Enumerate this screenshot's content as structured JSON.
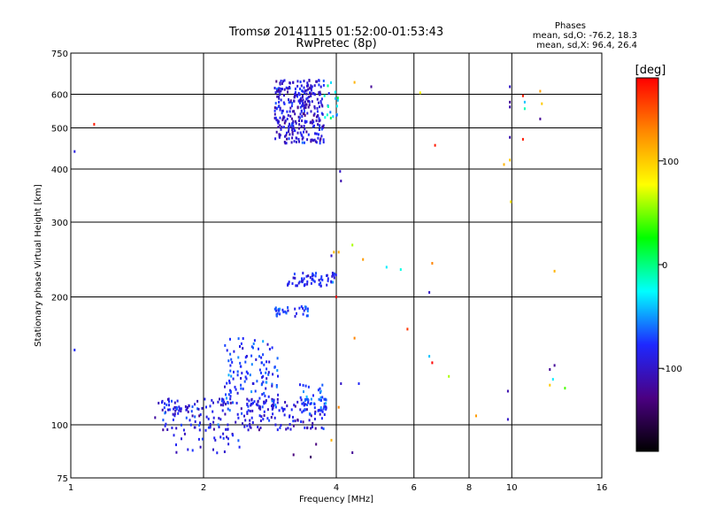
{
  "header": {
    "title_line1": "Tromsø 20141115 01:52:00-01:53:43",
    "title_line2": "RwPretec (8p)"
  },
  "stats": {
    "heading": "Phases",
    "line_o": "mean, sd,O: -76.2, 18.3",
    "line_x": "mean, sd,X:  96.4, 26.4"
  },
  "chart_data": {
    "type": "scatter",
    "xlabel": "Frequency [MHz]",
    "ylabel": "Stationary phase Virtual Height [km]",
    "x_scale": "log",
    "y_scale": "log",
    "xlim": [
      1,
      16
    ],
    "ylim": [
      75,
      750
    ],
    "x_ticks": [
      1,
      2,
      4,
      6,
      8,
      10,
      16
    ],
    "y_ticks": [
      75,
      100,
      200,
      300,
      400,
      500,
      600,
      750
    ],
    "grid": true,
    "colorbar": {
      "label": "[deg]",
      "range": [
        -180,
        180
      ],
      "ticks": [
        100,
        0,
        -100
      ],
      "colors": [
        "#000000",
        "#4b0082",
        "#1e28ff",
        "#00ffff",
        "#00ff00",
        "#ffff00",
        "#ff8800",
        "#ff0000"
      ]
    },
    "clusters": [
      {
        "trace": "F2 trace",
        "fmin": 2.9,
        "fmax": 3.75,
        "hmin": 460,
        "hmax": 650,
        "phase_mean": -95,
        "phase_sd": 25,
        "count": 320
      },
      {
        "trace": "F2 trace extension",
        "fmin": 3.75,
        "fmax": 4.1,
        "hmin": 520,
        "hmax": 640,
        "phase_mean": -40,
        "phase_sd": 40,
        "count": 18
      },
      {
        "trace": "F1 trace",
        "fmin": 3.1,
        "fmax": 4.0,
        "hmin": 212,
        "hmax": 228,
        "phase_mean": -80,
        "phase_sd": 20,
        "count": 60
      },
      {
        "trace": "F1 low trace",
        "fmin": 2.9,
        "fmax": 3.45,
        "hmin": 180,
        "hmax": 190,
        "phase_mean": -70,
        "phase_sd": 20,
        "count": 35
      },
      {
        "trace": "E layer",
        "fmin": 1.55,
        "fmax": 3.8,
        "hmin": 97,
        "hmax": 115,
        "phase_mean": -90,
        "phase_sd": 25,
        "count": 240
      },
      {
        "trace": "Es rising",
        "fmin": 2.2,
        "fmax": 2.95,
        "hmin": 110,
        "hmax": 160,
        "phase_mean": -75,
        "phase_sd": 25,
        "count": 130
      },
      {
        "trace": "E lower",
        "fmin": 1.7,
        "fmax": 2.5,
        "hmin": 85,
        "hmax": 96,
        "phase_mean": -90,
        "phase_sd": 25,
        "count": 25
      },
      {
        "trace": "E upper",
        "fmin": 3.3,
        "fmax": 3.8,
        "hmin": 105,
        "hmax": 125,
        "phase_mean": -70,
        "phase_sd": 20,
        "count": 45
      }
    ],
    "points": [
      [
        1.02,
        440,
        -90
      ],
      [
        1.13,
        510,
        170
      ],
      [
        1.02,
        150,
        -80
      ],
      [
        4.08,
        395,
        -100
      ],
      [
        4.1,
        375,
        -110
      ],
      [
        3.95,
        255,
        110
      ],
      [
        4.05,
        255,
        115
      ],
      [
        3.9,
        250,
        -100
      ],
      [
        4.35,
        265,
        60
      ],
      [
        4.6,
        245,
        120
      ],
      [
        5.2,
        235,
        -30
      ],
      [
        5.6,
        232,
        -20
      ],
      [
        6.6,
        240,
        130
      ],
      [
        6.5,
        205,
        -100
      ],
      [
        4.0,
        200,
        180
      ],
      [
        4.4,
        160,
        130
      ],
      [
        5.8,
        168,
        160
      ],
      [
        6.5,
        145,
        -40
      ],
      [
        6.6,
        140,
        190
      ],
      [
        7.2,
        130,
        60
      ],
      [
        4.5,
        125,
        -80
      ],
      [
        4.05,
        110,
        130
      ],
      [
        4.1,
        125,
        -100
      ],
      [
        3.6,
        90,
        -130
      ],
      [
        3.2,
        85,
        -130
      ],
      [
        3.5,
        84,
        -140
      ],
      [
        4.35,
        86,
        -120
      ],
      [
        3.9,
        92,
        110
      ],
      [
        8.3,
        105,
        120
      ],
      [
        9.8,
        103,
        -100
      ],
      [
        9.8,
        120,
        -110
      ],
      [
        12.2,
        135,
        -120
      ],
      [
        12.5,
        138,
        -120
      ],
      [
        12.4,
        128,
        -30
      ],
      [
        12.2,
        124,
        100
      ],
      [
        13.2,
        122,
        40
      ],
      [
        4.4,
        640,
        110
      ],
      [
        4.8,
        625,
        -120
      ],
      [
        6.2,
        605,
        80
      ],
      [
        9.9,
        625,
        -100
      ],
      [
        9.9,
        575,
        -120
      ],
      [
        9.9,
        560,
        -110
      ],
      [
        9.9,
        475,
        -110
      ],
      [
        10.6,
        595,
        170
      ],
      [
        10.7,
        575,
        -40
      ],
      [
        10.7,
        555,
        -10
      ],
      [
        11.6,
        610,
        120
      ],
      [
        11.7,
        570,
        100
      ],
      [
        11.6,
        525,
        -120
      ],
      [
        10.6,
        470,
        170
      ],
      [
        9.6,
        410,
        110
      ],
      [
        9.9,
        420,
        100
      ],
      [
        9.95,
        335,
        90
      ],
      [
        6.7,
        455,
        170
      ],
      [
        12.5,
        230,
        110
      ]
    ]
  }
}
